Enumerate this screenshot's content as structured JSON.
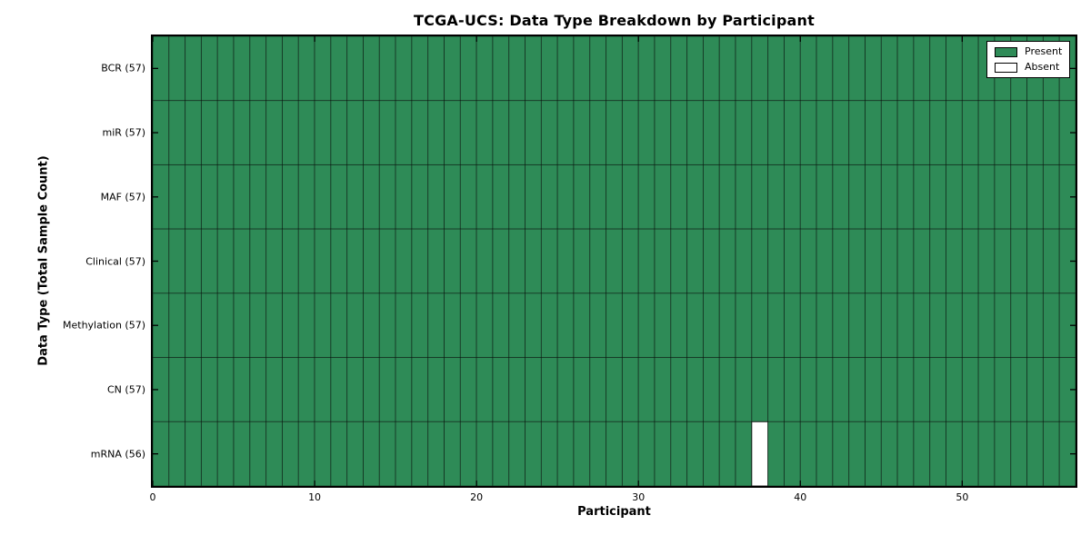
{
  "chart_data": {
    "type": "heatmap",
    "title": "TCGA-UCS: Data Type Breakdown by Participant",
    "xlabel": "Participant",
    "ylabel": "Data Type (Total Sample Count)",
    "n_participants": 57,
    "x_range": [
      0,
      57
    ],
    "xticks": [
      0,
      10,
      20,
      30,
      40,
      50
    ],
    "rows": [
      {
        "name": "BCR",
        "count": 57,
        "display": "BCR (57)",
        "absent_participants": []
      },
      {
        "name": "miR",
        "count": 57,
        "display": "miR (57)",
        "absent_participants": []
      },
      {
        "name": "MAF",
        "count": 57,
        "display": "MAF (57)",
        "absent_participants": []
      },
      {
        "name": "Clinical",
        "count": 57,
        "display": "Clinical (57)",
        "absent_participants": []
      },
      {
        "name": "Methylation",
        "count": 57,
        "display": "Methylation (57)",
        "absent_participants": []
      },
      {
        "name": "CN",
        "count": 57,
        "display": "CN (57)",
        "absent_participants": []
      },
      {
        "name": "mRNA",
        "count": 56,
        "display": "mRNA (56)",
        "absent_participants": [
          37
        ]
      }
    ],
    "colors": {
      "present": "#2e8b57",
      "absent": "#ffffff",
      "edge": "#000000",
      "background": "#ffffff"
    },
    "legend": [
      {
        "label": "Present",
        "color": "#2e8b57"
      },
      {
        "label": "Absent",
        "color": "#ffffff"
      }
    ],
    "legend_position": "upper right",
    "grid": false
  }
}
